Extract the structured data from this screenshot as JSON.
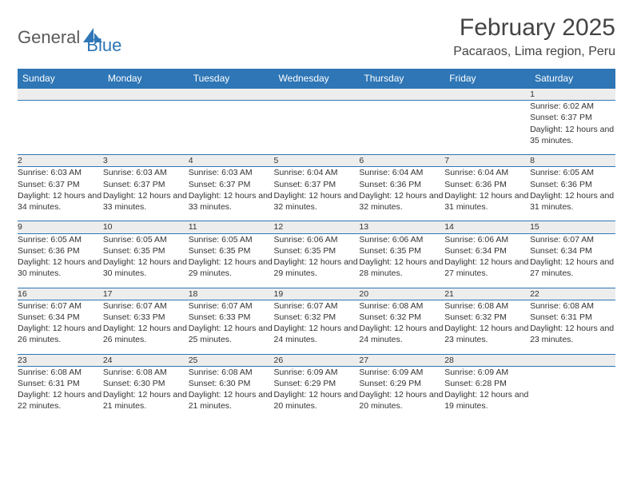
{
  "logo": {
    "part1": "General",
    "part2": "Blue"
  },
  "title": "February 2025",
  "location": "Pacaraos, Lima region, Peru",
  "colors": {
    "header_bg": "#2e76b6",
    "header_text": "#ffffff",
    "row_border": "#2e76b6",
    "daynum_bg": "#ededed",
    "body_text": "#333333",
    "page_bg": "#ffffff"
  },
  "typography": {
    "title_fontsize": 30,
    "location_fontsize": 16,
    "th_fontsize": 12,
    "cell_fontsize": 10.5
  },
  "weekdays": [
    "Sunday",
    "Monday",
    "Tuesday",
    "Wednesday",
    "Thursday",
    "Friday",
    "Saturday"
  ],
  "weeks": [
    [
      null,
      null,
      null,
      null,
      null,
      null,
      {
        "n": "1",
        "sr": "Sunrise: 6:02 AM",
        "ss": "Sunset: 6:37 PM",
        "dl": "Daylight: 12 hours and 35 minutes."
      }
    ],
    [
      {
        "n": "2",
        "sr": "Sunrise: 6:03 AM",
        "ss": "Sunset: 6:37 PM",
        "dl": "Daylight: 12 hours and 34 minutes."
      },
      {
        "n": "3",
        "sr": "Sunrise: 6:03 AM",
        "ss": "Sunset: 6:37 PM",
        "dl": "Daylight: 12 hours and 33 minutes."
      },
      {
        "n": "4",
        "sr": "Sunrise: 6:03 AM",
        "ss": "Sunset: 6:37 PM",
        "dl": "Daylight: 12 hours and 33 minutes."
      },
      {
        "n": "5",
        "sr": "Sunrise: 6:04 AM",
        "ss": "Sunset: 6:37 PM",
        "dl": "Daylight: 12 hours and 32 minutes."
      },
      {
        "n": "6",
        "sr": "Sunrise: 6:04 AM",
        "ss": "Sunset: 6:36 PM",
        "dl": "Daylight: 12 hours and 32 minutes."
      },
      {
        "n": "7",
        "sr": "Sunrise: 6:04 AM",
        "ss": "Sunset: 6:36 PM",
        "dl": "Daylight: 12 hours and 31 minutes."
      },
      {
        "n": "8",
        "sr": "Sunrise: 6:05 AM",
        "ss": "Sunset: 6:36 PM",
        "dl": "Daylight: 12 hours and 31 minutes."
      }
    ],
    [
      {
        "n": "9",
        "sr": "Sunrise: 6:05 AM",
        "ss": "Sunset: 6:36 PM",
        "dl": "Daylight: 12 hours and 30 minutes."
      },
      {
        "n": "10",
        "sr": "Sunrise: 6:05 AM",
        "ss": "Sunset: 6:35 PM",
        "dl": "Daylight: 12 hours and 30 minutes."
      },
      {
        "n": "11",
        "sr": "Sunrise: 6:05 AM",
        "ss": "Sunset: 6:35 PM",
        "dl": "Daylight: 12 hours and 29 minutes."
      },
      {
        "n": "12",
        "sr": "Sunrise: 6:06 AM",
        "ss": "Sunset: 6:35 PM",
        "dl": "Daylight: 12 hours and 29 minutes."
      },
      {
        "n": "13",
        "sr": "Sunrise: 6:06 AM",
        "ss": "Sunset: 6:35 PM",
        "dl": "Daylight: 12 hours and 28 minutes."
      },
      {
        "n": "14",
        "sr": "Sunrise: 6:06 AM",
        "ss": "Sunset: 6:34 PM",
        "dl": "Daylight: 12 hours and 27 minutes."
      },
      {
        "n": "15",
        "sr": "Sunrise: 6:07 AM",
        "ss": "Sunset: 6:34 PM",
        "dl": "Daylight: 12 hours and 27 minutes."
      }
    ],
    [
      {
        "n": "16",
        "sr": "Sunrise: 6:07 AM",
        "ss": "Sunset: 6:34 PM",
        "dl": "Daylight: 12 hours and 26 minutes."
      },
      {
        "n": "17",
        "sr": "Sunrise: 6:07 AM",
        "ss": "Sunset: 6:33 PM",
        "dl": "Daylight: 12 hours and 26 minutes."
      },
      {
        "n": "18",
        "sr": "Sunrise: 6:07 AM",
        "ss": "Sunset: 6:33 PM",
        "dl": "Daylight: 12 hours and 25 minutes."
      },
      {
        "n": "19",
        "sr": "Sunrise: 6:07 AM",
        "ss": "Sunset: 6:32 PM",
        "dl": "Daylight: 12 hours and 24 minutes."
      },
      {
        "n": "20",
        "sr": "Sunrise: 6:08 AM",
        "ss": "Sunset: 6:32 PM",
        "dl": "Daylight: 12 hours and 24 minutes."
      },
      {
        "n": "21",
        "sr": "Sunrise: 6:08 AM",
        "ss": "Sunset: 6:32 PM",
        "dl": "Daylight: 12 hours and 23 minutes."
      },
      {
        "n": "22",
        "sr": "Sunrise: 6:08 AM",
        "ss": "Sunset: 6:31 PM",
        "dl": "Daylight: 12 hours and 23 minutes."
      }
    ],
    [
      {
        "n": "23",
        "sr": "Sunrise: 6:08 AM",
        "ss": "Sunset: 6:31 PM",
        "dl": "Daylight: 12 hours and 22 minutes."
      },
      {
        "n": "24",
        "sr": "Sunrise: 6:08 AM",
        "ss": "Sunset: 6:30 PM",
        "dl": "Daylight: 12 hours and 21 minutes."
      },
      {
        "n": "25",
        "sr": "Sunrise: 6:08 AM",
        "ss": "Sunset: 6:30 PM",
        "dl": "Daylight: 12 hours and 21 minutes."
      },
      {
        "n": "26",
        "sr": "Sunrise: 6:09 AM",
        "ss": "Sunset: 6:29 PM",
        "dl": "Daylight: 12 hours and 20 minutes."
      },
      {
        "n": "27",
        "sr": "Sunrise: 6:09 AM",
        "ss": "Sunset: 6:29 PM",
        "dl": "Daylight: 12 hours and 20 minutes."
      },
      {
        "n": "28",
        "sr": "Sunrise: 6:09 AM",
        "ss": "Sunset: 6:28 PM",
        "dl": "Daylight: 12 hours and 19 minutes."
      },
      null
    ]
  ]
}
